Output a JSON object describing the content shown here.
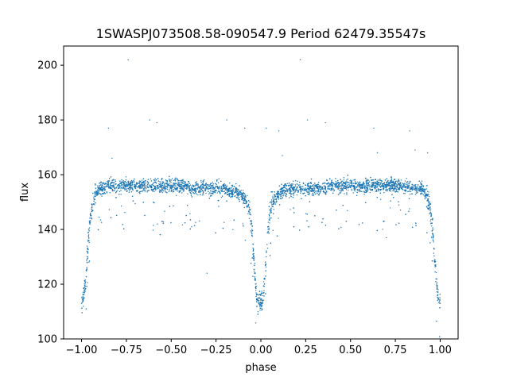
{
  "chart_data": {
    "type": "scatter",
    "title": "1SWASPJ073508.58-090547.9 Period 62479.35547s",
    "xlabel": "phase",
    "ylabel": "flux",
    "xlim": [
      -1.1,
      1.1
    ],
    "ylim": [
      100,
      207
    ],
    "x_ticks": [
      -1.0,
      -0.75,
      -0.5,
      -0.25,
      0.0,
      0.25,
      0.5,
      0.75,
      1.0
    ],
    "x_tick_labels": [
      "−1.00",
      "−0.75",
      "−0.50",
      "−0.25",
      "0.00",
      "0.25",
      "0.50",
      "0.75",
      "1.00"
    ],
    "y_ticks": [
      100,
      120,
      140,
      160,
      180,
      200
    ],
    "y_tick_labels": [
      "100",
      "120",
      "140",
      "160",
      "180",
      "200"
    ],
    "grid": false,
    "point_color": "#1f77b4",
    "series": [
      {
        "x": [
          -1.0,
          -0.99,
          -0.98,
          -0.97,
          -0.96,
          -0.95,
          -0.94,
          -0.93,
          -0.92,
          -0.91,
          -0.9,
          -0.88,
          -0.86,
          -0.84,
          -0.82,
          -0.8,
          -0.78,
          -0.76,
          -0.74,
          -0.72,
          -0.7,
          -0.68,
          -0.66,
          -0.64,
          -0.62,
          -0.6,
          -0.58,
          -0.56,
          -0.54,
          -0.52,
          -0.5,
          -0.48,
          -0.46,
          -0.44,
          -0.42,
          -0.4,
          -0.38,
          -0.36,
          -0.34,
          -0.32,
          -0.3,
          -0.28,
          -0.26,
          -0.24,
          -0.22,
          -0.2,
          -0.18,
          -0.16,
          -0.14,
          -0.12,
          -0.1,
          -0.09,
          -0.08,
          -0.07,
          -0.06,
          -0.05,
          -0.04,
          -0.03,
          -0.02,
          -0.01,
          0.0,
          0.01,
          0.02,
          0.03,
          0.04,
          0.05,
          0.06,
          0.07,
          0.08,
          0.09,
          0.1,
          0.12,
          0.14,
          0.16,
          0.18,
          0.2,
          0.22,
          0.24,
          0.26,
          0.28,
          0.3,
          0.32,
          0.34,
          0.36,
          0.38,
          0.4,
          0.42,
          0.44,
          0.46,
          0.48,
          0.5,
          0.52,
          0.54,
          0.56,
          0.58,
          0.6,
          0.62,
          0.64,
          0.66,
          0.68,
          0.7,
          0.72,
          0.74,
          0.76,
          0.78,
          0.8,
          0.82,
          0.84,
          0.86,
          0.88,
          0.9,
          0.91,
          0.92,
          0.93,
          0.94,
          0.95,
          0.96,
          0.97,
          0.98,
          0.99,
          1.0
        ],
        "y": [
          113,
          115,
          120,
          128,
          138,
          145,
          149,
          151,
          153,
          154,
          155,
          155,
          156,
          156,
          156,
          156,
          156,
          156,
          156,
          156,
          156,
          156,
          156,
          156,
          156,
          156,
          156,
          156,
          156,
          156,
          156,
          156,
          156,
          156,
          156,
          155,
          155,
          155,
          155,
          155,
          155,
          155,
          155,
          155,
          155,
          155,
          154,
          154,
          154,
          153,
          152,
          151,
          150,
          149,
          146,
          140,
          130,
          120,
          114,
          113,
          113,
          114,
          120,
          130,
          140,
          146,
          149,
          150,
          151,
          152,
          153,
          154,
          155,
          155,
          155,
          155,
          155,
          155,
          155,
          155,
          155,
          155,
          155,
          155,
          156,
          156,
          156,
          156,
          156,
          156,
          156,
          156,
          156,
          156,
          156,
          156,
          156,
          156,
          156,
          156,
          156,
          156,
          156,
          156,
          156,
          156,
          156,
          155,
          155,
          155,
          155,
          154,
          153,
          151,
          149,
          145,
          138,
          128,
          120,
          115,
          113
        ]
      }
    ],
    "outliers": {
      "x": [
        -0.74,
        -0.62,
        -0.58,
        -0.19,
        -0.09,
        0.03,
        0.22,
        0.26,
        0.36,
        0.63,
        0.65,
        0.93,
        -0.85,
        -0.83,
        0.1,
        0.12,
        0.83,
        0.86,
        0.7,
        -0.3
      ],
      "y": [
        202,
        180,
        179,
        180,
        177,
        177,
        202,
        180,
        179,
        177,
        168,
        168,
        177,
        166,
        176,
        167,
        176,
        169,
        137,
        124
      ]
    }
  }
}
